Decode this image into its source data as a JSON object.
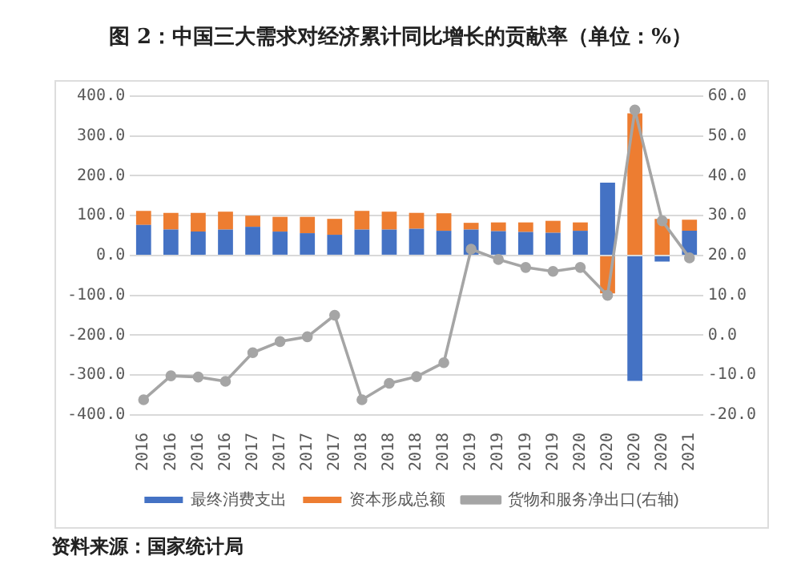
{
  "chart_data": {
    "type": "bar",
    "title": "图 2：中国三大需求对经济累计同比增长的贡献率（单位：%）",
    "categories": [
      "2016",
      "2016",
      "2016",
      "2016",
      "2017",
      "2017",
      "2017",
      "2017",
      "2018",
      "2018",
      "2018",
      "2018",
      "2019",
      "2019",
      "2019",
      "2019",
      "2020",
      "2020",
      "2020",
      "2020",
      "2021"
    ],
    "stacked": true,
    "series": [
      {
        "name": "最终消费支出",
        "color": "#4472c4",
        "values": [
          77,
          65,
          60,
          65,
          72,
          60,
          56,
          52,
          65,
          65,
          67,
          62,
          65,
          61,
          59,
          57,
          62,
          183,
          -315,
          -15,
          62
        ]
      },
      {
        "name": "资本形成总额",
        "color": "#ed7d31",
        "values": [
          35,
          42,
          47,
          45,
          28,
          37,
          41,
          40,
          47,
          45,
          40,
          44,
          17,
          22,
          24,
          30,
          21,
          -95,
          357,
          92,
          28
        ]
      },
      {
        "name": "货物和服务净出口(右轴)",
        "type": "line",
        "axis": "y2",
        "color": "#a5a5a5",
        "values": [
          -16.2,
          -10.2,
          -10.5,
          -11.6,
          -4.4,
          -1.6,
          -0.4,
          5.0,
          -16.2,
          -12.1,
          -10.4,
          -6.9,
          21.6,
          19,
          17,
          16,
          17,
          10,
          56.5,
          28.7,
          19.4
        ]
      }
    ],
    "ylim": [
      -400,
      400
    ],
    "yticks": [
      {
        "value": -400,
        "label": "-400.0"
      },
      {
        "value": -300,
        "label": "-300.0"
      },
      {
        "value": -200,
        "label": "-200.0"
      },
      {
        "value": -100,
        "label": "-100.0"
      },
      {
        "value": 0,
        "label": "0.0"
      },
      {
        "value": 100,
        "label": "100.0"
      },
      {
        "value": 200,
        "label": "200.0"
      },
      {
        "value": 300,
        "label": "300.0"
      },
      {
        "value": 400,
        "label": "400.0"
      }
    ],
    "y2lim": [
      -20,
      60
    ],
    "y2ticks": [
      {
        "value": -20,
        "label": "-20.0"
      },
      {
        "value": -10,
        "label": "-10.0"
      },
      {
        "value": 0,
        "label": "0.0"
      },
      {
        "value": 10,
        "label": "10.0"
      },
      {
        "value": 20,
        "label": "20.0"
      },
      {
        "value": 30,
        "label": "30.0"
      },
      {
        "value": 40,
        "label": "40.0"
      },
      {
        "value": 50,
        "label": "50.0"
      },
      {
        "value": 60,
        "label": "60.0"
      }
    ],
    "grid": "y",
    "legend": "bottom",
    "marker": "circle",
    "annotations": [
      "资料来源：国家统计局"
    ]
  }
}
